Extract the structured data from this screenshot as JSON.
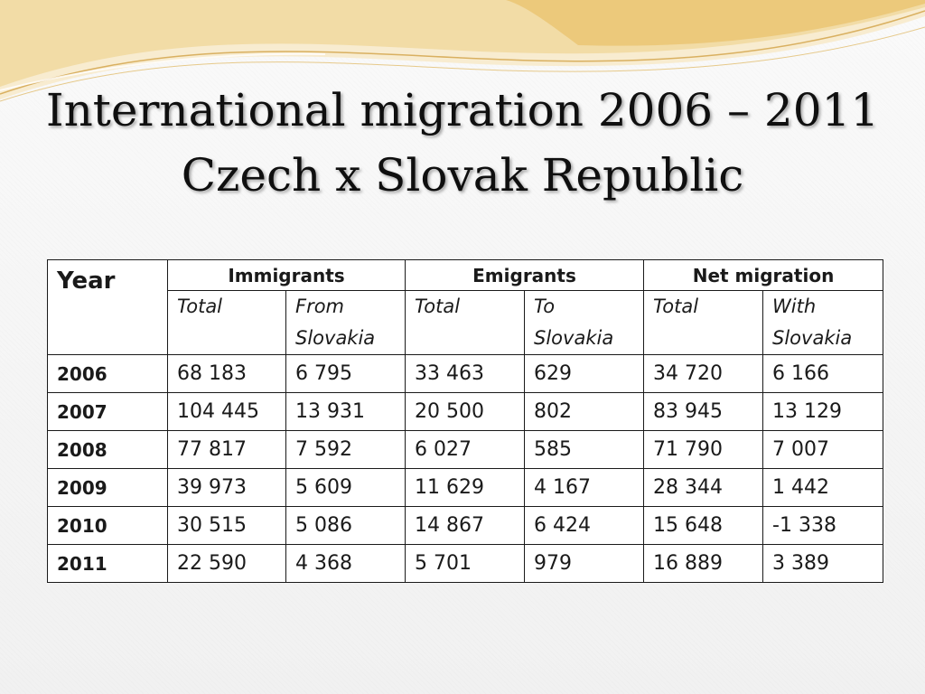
{
  "slide": {
    "title_line1": "International migration 2006 – 2011",
    "title_line2": "Czech x Slovak Republic"
  },
  "table": {
    "year_header": "Year",
    "groups": [
      "Immigrants",
      "Emigrants",
      "Net migration"
    ],
    "subheaders": [
      [
        "Total",
        "From Slovakia"
      ],
      [
        "Total",
        "To Slovakia"
      ],
      [
        "Total",
        "With Slovakia"
      ]
    ],
    "rows": [
      [
        "2006",
        "68 183",
        "6 795",
        "33 463",
        "629",
        "34 720",
        "6 166"
      ],
      [
        "2007",
        "104 445",
        "13 931",
        "20 500",
        "802",
        "83 945",
        "13 129"
      ],
      [
        "2008",
        "77 817",
        "7 592",
        "6 027",
        "585",
        "71 790",
        "7 007"
      ],
      [
        "2009",
        "39 973",
        "5 609",
        "11 629",
        "4 167",
        "28 344",
        "1 442"
      ],
      [
        "2010",
        "30 515",
        "5 086",
        "14 867",
        "6 424",
        "15 648",
        "-1 338"
      ],
      [
        "2011",
        "22 590",
        "4 368",
        "5 701",
        "979",
        "16 889",
        "3 389"
      ]
    ]
  },
  "colors": {
    "swoosh_gold": "#e9c474",
    "swoosh_light": "#f5e3b5",
    "text": "#0f0f0f"
  }
}
